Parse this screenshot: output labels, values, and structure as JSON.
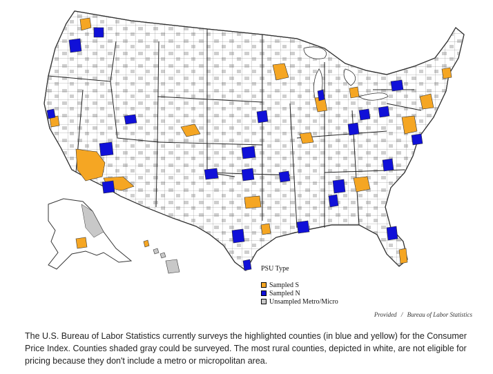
{
  "legend": {
    "title": "PSU Type",
    "items": [
      {
        "label": "Sampled S",
        "color": "#f5a623"
      },
      {
        "label": "Sampled N",
        "color": "#1010d8"
      },
      {
        "label": "Unsampled Metro/Micro",
        "color": "#c8c8c8"
      }
    ]
  },
  "credit": {
    "provided": "Provided",
    "separator": "/",
    "source": "Bureau of Labor Statistics"
  },
  "caption": "The U.S. Bureau of Labor Statistics currently surveys the highlighted counties (in blue and yellow) for the Consumer Price Index. Counties shaded gray could be surveyed. The most rural counties, depicted in white, are not eligible for pricing because they don't include a metro or micropolitan area.",
  "colors": {
    "sampled_s": "#f5a623",
    "sampled_n": "#1010d8",
    "unsampled": "#c8c8c8",
    "rural": "#ffffff",
    "border": "#333333"
  }
}
